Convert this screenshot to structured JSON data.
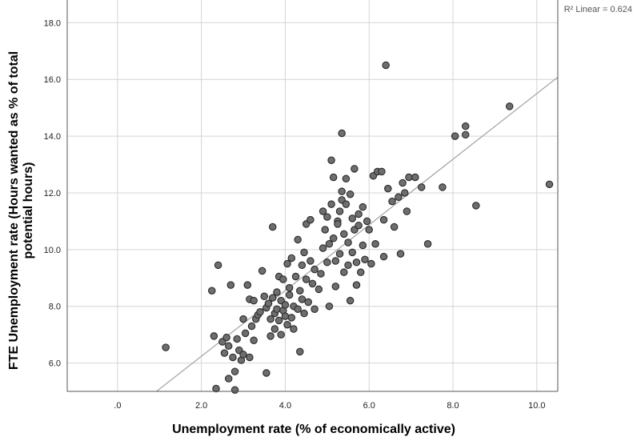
{
  "chart_data": {
    "type": "scatter",
    "xlabel": "Unemployment rate (% of economically active)",
    "ylabel_lines": [
      "FTE Unemployment rate (Hours wanted as % of total",
      "potential hours)"
    ],
    "annotation": "R² Linear = 0.624",
    "xlim": [
      -1.2,
      10.5
    ],
    "ylim": [
      5.0,
      18.8
    ],
    "x_ticks": [
      {
        "value": 0,
        "label": ".0"
      },
      {
        "value": 2,
        "label": "2.0"
      },
      {
        "value": 4,
        "label": "4.0"
      },
      {
        "value": 6,
        "label": "6.0"
      },
      {
        "value": 8,
        "label": "8.0"
      },
      {
        "value": 10,
        "label": "10.0"
      }
    ],
    "y_ticks": [
      {
        "value": 6,
        "label": "6.0"
      },
      {
        "value": 8,
        "label": "8.0"
      },
      {
        "value": 10,
        "label": "10.0"
      },
      {
        "value": 12,
        "label": "12.0"
      },
      {
        "value": 14,
        "label": "14.0"
      },
      {
        "value": 16,
        "label": "16.0"
      },
      {
        "value": 18,
        "label": "18.0"
      }
    ],
    "grid": true,
    "fit_line": {
      "x": [
        0.93,
        10.5
      ],
      "y": [
        5.0,
        16.08
      ]
    },
    "colors": {
      "point_fill": "#6e6e6e",
      "point_stroke": "#2a2a2a",
      "fit_line": "#a8a8a8",
      "grid": "#d4d4d4",
      "axis": "#555555"
    },
    "points": [
      [
        1.15,
        6.55
      ],
      [
        2.25,
        8.55
      ],
      [
        2.3,
        6.95
      ],
      [
        2.35,
        5.1
      ],
      [
        2.4,
        9.45
      ],
      [
        2.5,
        6.75
      ],
      [
        2.55,
        6.35
      ],
      [
        2.6,
        6.9
      ],
      [
        2.65,
        6.6
      ],
      [
        2.65,
        5.45
      ],
      [
        2.7,
        8.75
      ],
      [
        2.75,
        6.2
      ],
      [
        2.8,
        5.7
      ],
      [
        2.8,
        5.05
      ],
      [
        2.85,
        6.85
      ],
      [
        2.9,
        6.45
      ],
      [
        2.95,
        6.1
      ],
      [
        3.0,
        7.55
      ],
      [
        3.0,
        6.3
      ],
      [
        3.05,
        7.05
      ],
      [
        3.1,
        8.75
      ],
      [
        3.15,
        8.25
      ],
      [
        3.15,
        6.2
      ],
      [
        3.2,
        7.3
      ],
      [
        3.25,
        6.8
      ],
      [
        3.25,
        8.2
      ],
      [
        3.3,
        7.55
      ],
      [
        3.35,
        7.7
      ],
      [
        3.4,
        7.8
      ],
      [
        3.45,
        9.25
      ],
      [
        3.5,
        8.35
      ],
      [
        3.55,
        7.95
      ],
      [
        3.55,
        5.65
      ],
      [
        3.6,
        8.1
      ],
      [
        3.65,
        7.55
      ],
      [
        3.65,
        6.95
      ],
      [
        3.7,
        10.8
      ],
      [
        3.7,
        8.3
      ],
      [
        3.75,
        7.2
      ],
      [
        3.75,
        7.75
      ],
      [
        3.8,
        8.5
      ],
      [
        3.8,
        7.9
      ],
      [
        3.85,
        9.05
      ],
      [
        3.85,
        7.5
      ],
      [
        3.9,
        8.2
      ],
      [
        3.9,
        7.0
      ],
      [
        3.95,
        8.95
      ],
      [
        3.95,
        7.85
      ],
      [
        4.0,
        8.05
      ],
      [
        4.0,
        7.65
      ],
      [
        4.05,
        9.5
      ],
      [
        4.05,
        7.35
      ],
      [
        4.1,
        8.4
      ],
      [
        4.1,
        8.65
      ],
      [
        4.15,
        7.6
      ],
      [
        4.15,
        9.7
      ],
      [
        4.2,
        8.0
      ],
      [
        4.2,
        7.2
      ],
      [
        4.25,
        9.05
      ],
      [
        4.3,
        7.9
      ],
      [
        4.3,
        10.35
      ],
      [
        4.35,
        8.55
      ],
      [
        4.35,
        6.4
      ],
      [
        4.4,
        9.45
      ],
      [
        4.4,
        8.25
      ],
      [
        4.45,
        7.75
      ],
      [
        4.45,
        9.9
      ],
      [
        4.5,
        10.9
      ],
      [
        4.5,
        8.95
      ],
      [
        4.55,
        8.15
      ],
      [
        4.6,
        11.05
      ],
      [
        4.6,
        9.6
      ],
      [
        4.65,
        8.8
      ],
      [
        4.7,
        9.3
      ],
      [
        4.7,
        7.9
      ],
      [
        4.8,
        8.6
      ],
      [
        4.85,
        9.15
      ],
      [
        4.9,
        11.35
      ],
      [
        4.9,
        10.05
      ],
      [
        4.95,
        10.7
      ],
      [
        5.0,
        11.15
      ],
      [
        5.0,
        9.55
      ],
      [
        5.05,
        8.0
      ],
      [
        5.05,
        10.2
      ],
      [
        5.1,
        13.15
      ],
      [
        5.1,
        11.6
      ],
      [
        5.15,
        12.55
      ],
      [
        5.15,
        10.4
      ],
      [
        5.2,
        9.6
      ],
      [
        5.2,
        8.7
      ],
      [
        5.25,
        11.0
      ],
      [
        5.25,
        10.9
      ],
      [
        5.3,
        11.35
      ],
      [
        5.3,
        9.85
      ],
      [
        5.35,
        14.1
      ],
      [
        5.35,
        12.05
      ],
      [
        5.35,
        11.75
      ],
      [
        5.4,
        10.55
      ],
      [
        5.4,
        9.2
      ],
      [
        5.45,
        12.5
      ],
      [
        5.45,
        11.6
      ],
      [
        5.5,
        10.25
      ],
      [
        5.5,
        9.45
      ],
      [
        5.55,
        11.95
      ],
      [
        5.55,
        8.2
      ],
      [
        5.6,
        11.1
      ],
      [
        5.6,
        9.9
      ],
      [
        5.65,
        12.85
      ],
      [
        5.65,
        10.7
      ],
      [
        5.7,
        9.55
      ],
      [
        5.7,
        8.75
      ],
      [
        5.75,
        11.25
      ],
      [
        5.75,
        10.85
      ],
      [
        5.8,
        9.2
      ],
      [
        5.85,
        11.5
      ],
      [
        5.85,
        10.15
      ],
      [
        5.9,
        9.65
      ],
      [
        5.95,
        11.0
      ],
      [
        6.0,
        10.7
      ],
      [
        6.05,
        9.5
      ],
      [
        6.1,
        12.6
      ],
      [
        6.15,
        10.2
      ],
      [
        6.2,
        12.75
      ],
      [
        6.3,
        12.75
      ],
      [
        6.35,
        11.05
      ],
      [
        6.35,
        9.75
      ],
      [
        6.4,
        16.5
      ],
      [
        6.45,
        12.15
      ],
      [
        6.55,
        11.7
      ],
      [
        6.6,
        10.8
      ],
      [
        6.7,
        11.85
      ],
      [
        6.75,
        9.85
      ],
      [
        6.8,
        12.35
      ],
      [
        6.85,
        12.0
      ],
      [
        6.9,
        11.35
      ],
      [
        6.95,
        12.55
      ],
      [
        7.1,
        12.55
      ],
      [
        7.25,
        12.2
      ],
      [
        7.4,
        10.2
      ],
      [
        7.75,
        12.2
      ],
      [
        8.05,
        14.0
      ],
      [
        8.3,
        14.05
      ],
      [
        8.3,
        14.35
      ],
      [
        8.55,
        11.55
      ],
      [
        9.35,
        15.05
      ],
      [
        10.3,
        12.3
      ]
    ]
  }
}
